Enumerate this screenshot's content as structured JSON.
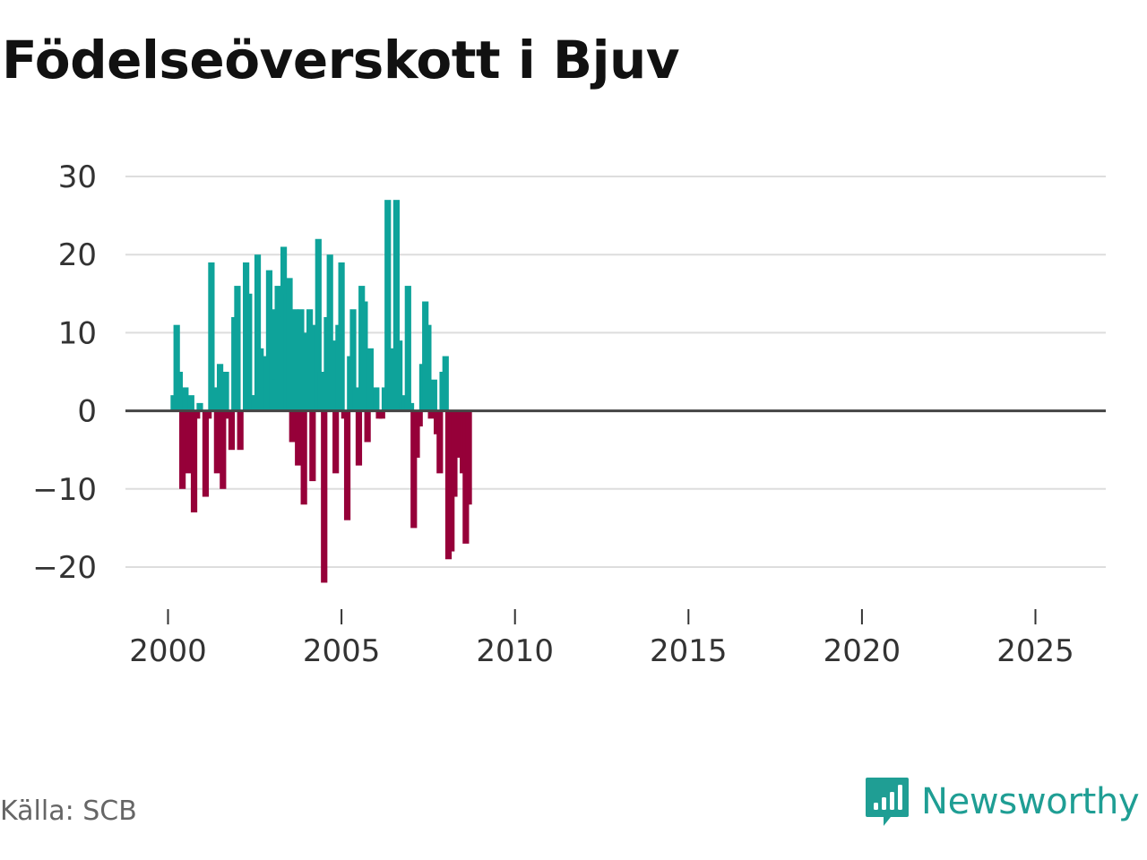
{
  "title": "Födelseöverskott i Bjuv",
  "source": "Källa: SCB",
  "brand": "Newsworthy",
  "colors": {
    "positive": "#0ea39a",
    "negative": "#960039",
    "grid": "#dddddd",
    "zero_line": "#444444",
    "brand": "#1f9e94"
  },
  "chart_data": {
    "type": "bar",
    "title": "Födelseöverskott i Bjuv",
    "xlabel": "",
    "ylabel": "",
    "ylim": [
      -25,
      30
    ],
    "yticks": [
      30,
      20,
      10,
      0,
      -10,
      -20
    ],
    "ytick_labels": [
      "30",
      "20",
      "10",
      "0",
      "−10",
      "−20"
    ],
    "xticks": [
      2000,
      2005,
      2010,
      2015,
      2020,
      2025
    ],
    "xtick_labels": [
      "2000",
      "2005",
      "2010",
      "2015",
      "2020",
      "2025"
    ],
    "x_start": 2000.0,
    "x_step": 0.0833333,
    "grid": true,
    "values": [
      0,
      0,
      2,
      11,
      5,
      -10,
      3,
      -8,
      2,
      -13,
      -1,
      1,
      0,
      -11,
      -1,
      19,
      3,
      -8,
      6,
      -10,
      5,
      -1,
      -5,
      12,
      16,
      -5,
      0,
      19,
      15,
      2,
      2,
      20,
      8,
      3,
      7,
      18,
      13,
      4,
      16,
      12,
      21,
      15,
      17,
      -4,
      13,
      -7,
      13,
      -12,
      10,
      13,
      -9,
      11,
      22,
      5,
      -22,
      12,
      20,
      9,
      -8,
      11,
      19,
      -1,
      -14,
      7,
      13,
      3,
      -7,
      16,
      14,
      -4,
      8,
      0,
      3,
      -1,
      -1,
      3,
      27,
      8,
      5,
      27,
      9,
      1,
      2,
      16,
      1,
      -15,
      -6,
      -2,
      6,
      14,
      11,
      -1,
      4,
      -3,
      -8,
      5,
      7,
      -19,
      -18,
      -11,
      -6,
      -1,
      -8,
      -17,
      -12
    ]
  }
}
